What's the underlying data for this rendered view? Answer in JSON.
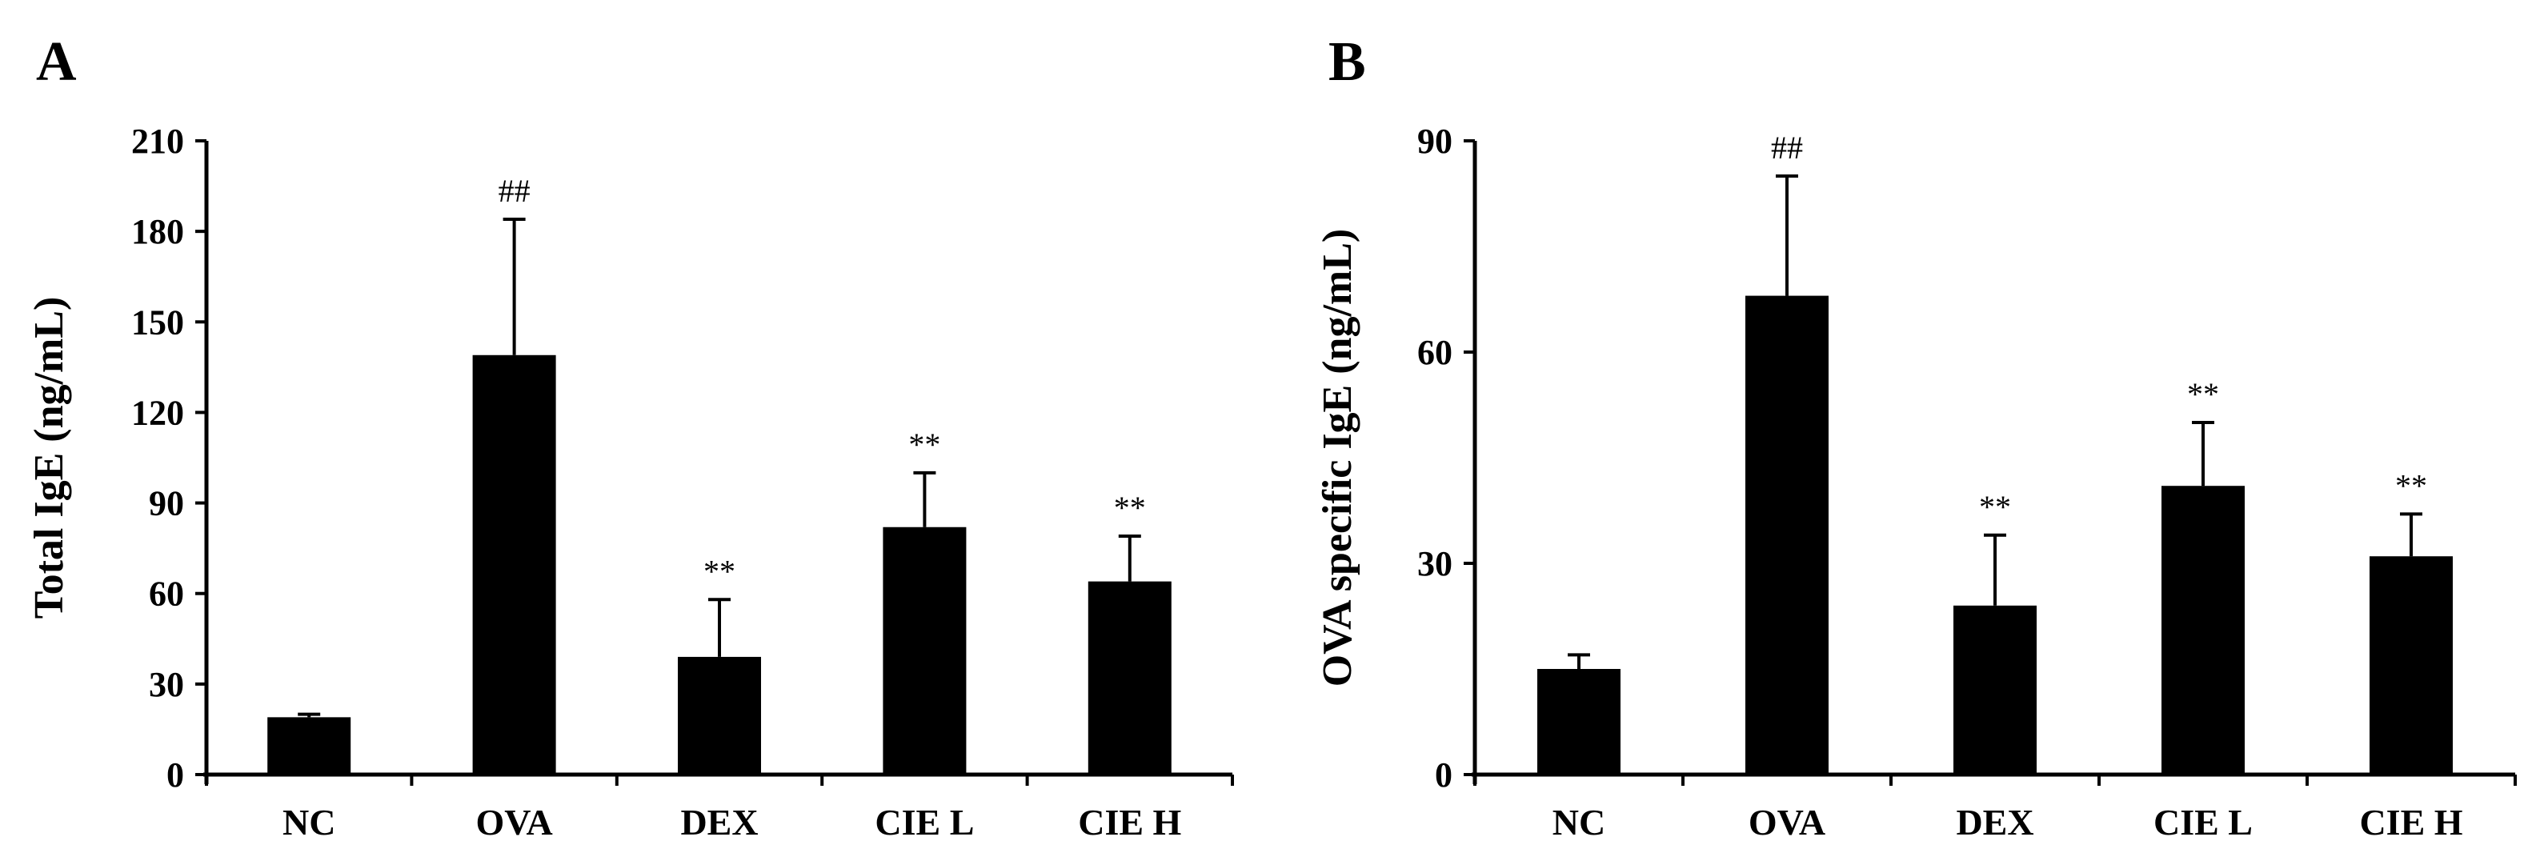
{
  "figure": {
    "colors": {
      "bar": "#000000",
      "axis": "#000000",
      "background": "#ffffff"
    }
  },
  "chart_data": [
    {
      "type": "bar",
      "panel": "A",
      "title": "",
      "xlabel": "",
      "ylabel": "Total IgE (ng/mL)",
      "ylim": [
        0,
        210
      ],
      "yticks": [
        0,
        30,
        60,
        90,
        120,
        150,
        180,
        210
      ],
      "grid": false,
      "categories": [
        "NC",
        "OVA",
        "DEX",
        "CIE L",
        "CIE H"
      ],
      "values": [
        19,
        139,
        39,
        82,
        64
      ],
      "errors": [
        1,
        45,
        19,
        18,
        15
      ],
      "annotations": [
        "",
        "##",
        "**",
        "**",
        "**"
      ]
    },
    {
      "type": "bar",
      "panel": "B",
      "title": "",
      "xlabel": "",
      "ylabel": "OVA specific IgE (ng/mL)",
      "ylim": [
        0,
        90
      ],
      "yticks": [
        0,
        30,
        60,
        90
      ],
      "grid": false,
      "categories": [
        "NC",
        "OVA",
        "DEX",
        "CIE L",
        "CIE H"
      ],
      "values": [
        15,
        68,
        24,
        41,
        31
      ],
      "errors": [
        2,
        17,
        10,
        9,
        6
      ],
      "annotations": [
        "",
        "##",
        "**",
        "**",
        "**"
      ]
    }
  ]
}
